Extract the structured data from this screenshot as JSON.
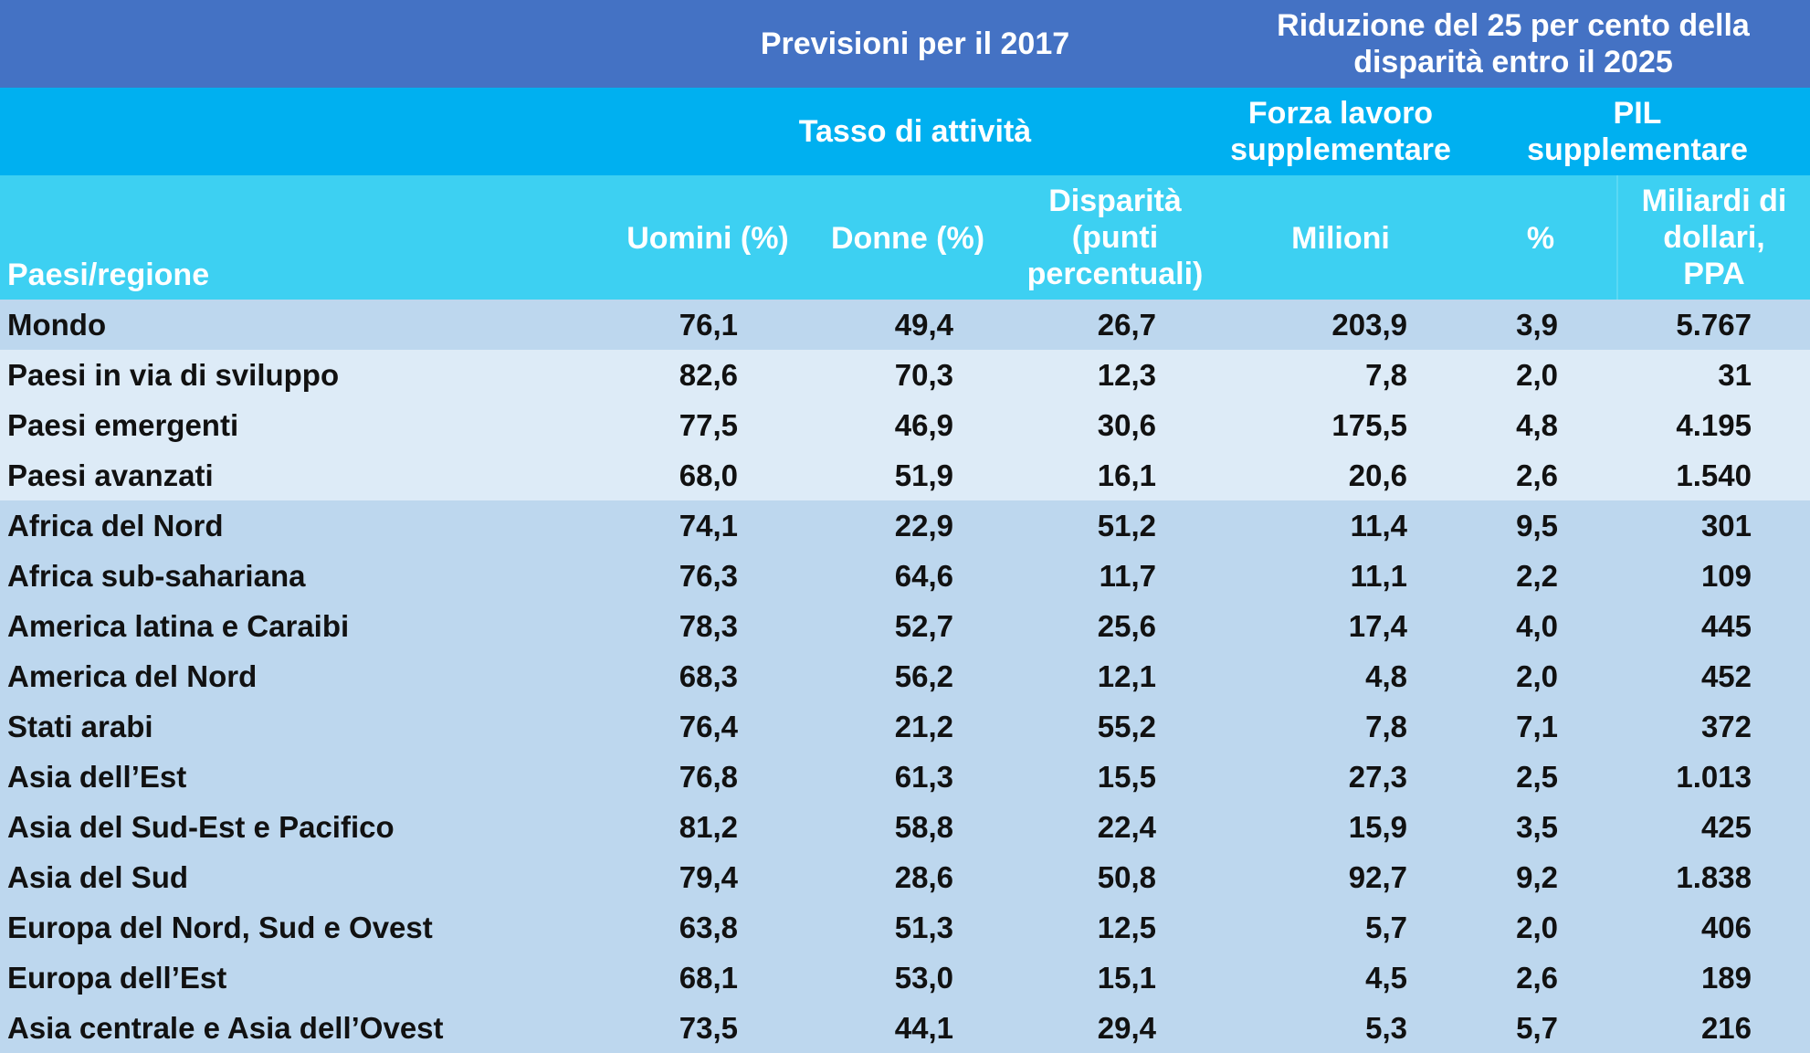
{
  "header": {
    "row1": {
      "previsioni": "Previsioni per il 2017",
      "riduzione_line1": "Riduzione del 25 per cento della",
      "riduzione_line2": "disparità entro il 2025"
    },
    "row2": {
      "tasso": "Tasso di attività",
      "forza_line1": "Forza lavoro",
      "forza_line2": "supplementare",
      "pil_line1": "PIL",
      "pil_line2": "supplementare"
    },
    "row3": {
      "paesi": "Paesi/regione",
      "uomini": "Uomini (%)",
      "donne": "Donne (%)",
      "disp_line1": "Disparità",
      "disp_line2": "(punti",
      "disp_line3": "percentuali)",
      "milioni": "Milioni",
      "percent": "%",
      "mld_line1": "Miliardi di",
      "mld_line2": "dollari,",
      "mld_line3": "PPA"
    }
  },
  "rows": [
    {
      "name": "Mondo",
      "uomini": "76,1",
      "donne": "49,4",
      "disparita": "26,7",
      "milioni": "203,9",
      "percent": "3,9",
      "pil": "5.767"
    },
    {
      "name": "Paesi in via di sviluppo",
      "uomini": "82,6",
      "donne": "70,3",
      "disparita": "12,3",
      "milioni": "7,8",
      "percent": "2,0",
      "pil": "31"
    },
    {
      "name": "Paesi emergenti",
      "uomini": "77,5",
      "donne": "46,9",
      "disparita": "30,6",
      "milioni": "175,5",
      "percent": "4,8",
      "pil": "4.195"
    },
    {
      "name": "Paesi avanzati",
      "uomini": "68,0",
      "donne": "51,9",
      "disparita": "16,1",
      "milioni": "20,6",
      "percent": "2,6",
      "pil": "1.540"
    },
    {
      "name": "Africa del Nord",
      "uomini": "74,1",
      "donne": "22,9",
      "disparita": "51,2",
      "milioni": "11,4",
      "percent": "9,5",
      "pil": "301"
    },
    {
      "name": "Africa sub-sahariana",
      "uomini": "76,3",
      "donne": "64,6",
      "disparita": "11,7",
      "milioni": "11,1",
      "percent": "2,2",
      "pil": "109"
    },
    {
      "name": "America latina e Caraibi",
      "uomini": "78,3",
      "donne": "52,7",
      "disparita": "25,6",
      "milioni": "17,4",
      "percent": "4,0",
      "pil": "445"
    },
    {
      "name": "America del Nord",
      "uomini": "68,3",
      "donne": "56,2",
      "disparita": "12,1",
      "milioni": "4,8",
      "percent": "2,0",
      "pil": "452"
    },
    {
      "name": "Stati arabi",
      "uomini": "76,4",
      "donne": "21,2",
      "disparita": "55,2",
      "milioni": "7,8",
      "percent": "7,1",
      "pil": "372"
    },
    {
      "name": "Asia dell’Est",
      "uomini": "76,8",
      "donne": "61,3",
      "disparita": "15,5",
      "milioni": "27,3",
      "percent": "2,5",
      "pil": "1.013"
    },
    {
      "name": "Asia del Sud-Est e Pacifico",
      "uomini": "81,2",
      "donne": "58,8",
      "disparita": "22,4",
      "milioni": "15,9",
      "percent": "3,5",
      "pil": "425"
    },
    {
      "name": "Asia del Sud",
      "uomini": "79,4",
      "donne": "28,6",
      "disparita": "50,8",
      "milioni": "92,7",
      "percent": "9,2",
      "pil": "1.838"
    },
    {
      "name": "Europa del Nord, Sud e Ovest",
      "uomini": "63,8",
      "donne": "51,3",
      "disparita": "12,5",
      "milioni": "5,7",
      "percent": "2,0",
      "pil": "406"
    },
    {
      "name": "Europa dell’Est",
      "uomini": "68,1",
      "donne": "53,0",
      "disparita": "15,1",
      "milioni": "4,5",
      "percent": "2,6",
      "pil": "189"
    },
    {
      "name": "Asia centrale e Asia dell’Ovest",
      "uomini": "73,5",
      "donne": "44,1",
      "disparita": "29,4",
      "milioni": "5,3",
      "percent": "5,7",
      "pil": "216"
    }
  ],
  "colors": {
    "header_top": "#4472c4",
    "header_mid": "#00b0f0",
    "header_sub": "#3dd0f2",
    "row_dark": "#bdd7ee",
    "row_light": "#ddebf7"
  }
}
